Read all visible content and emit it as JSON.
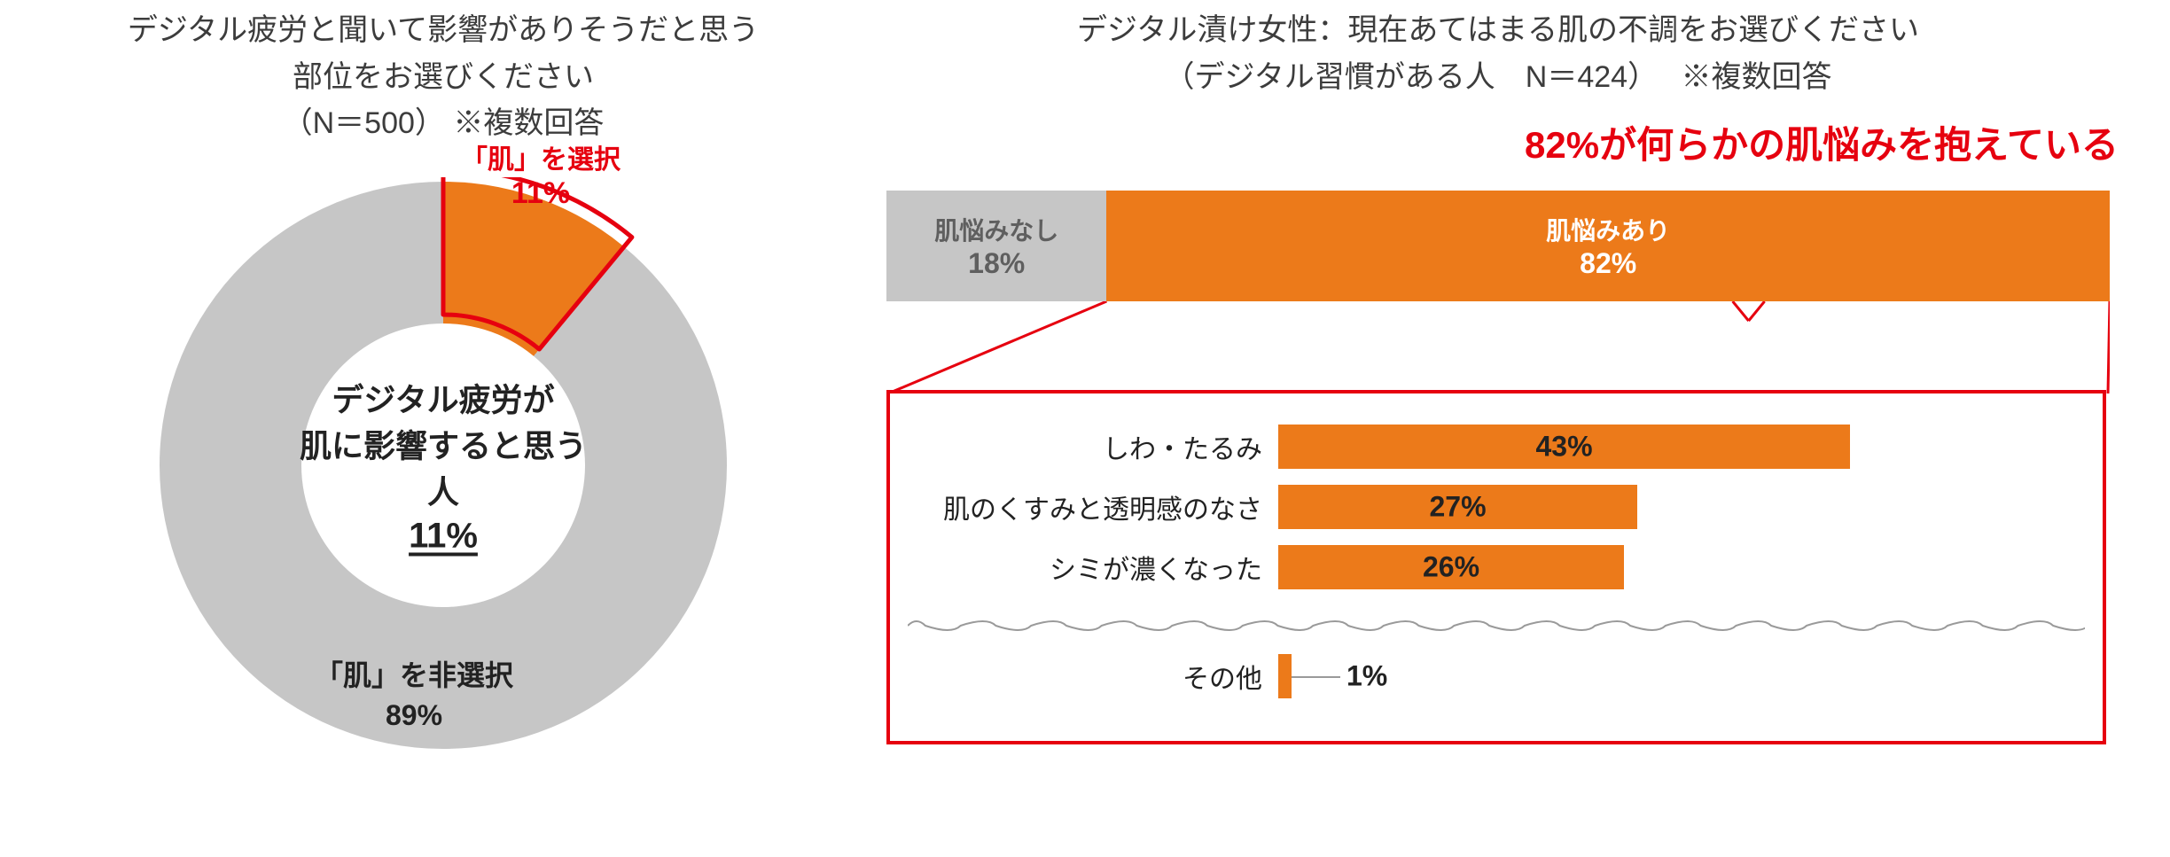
{
  "colors": {
    "orange": "#ec7a1a",
    "orange_dark": "#e06a12",
    "red": "#e6000f",
    "gray_bar": "#c6c6c6",
    "gray_label": "#5f5f5f",
    "text": "#3c3c3c",
    "text_dark": "#222222",
    "bg": "#ffffff",
    "wave": "#9a9a9a"
  },
  "left": {
    "title_lines": [
      "デジタル疲労と聞いて影響がありそうだと思う",
      "部位をお選びください",
      "（N＝500） ※複数回答"
    ],
    "donut": {
      "type": "donut",
      "outer_d": 640,
      "inner_d": 320,
      "slices": [
        {
          "label": "「肌」を選択",
          "value": 11,
          "value_label": "11%",
          "color": "#ec7a1a",
          "outline": "#e6000f",
          "callout": true
        },
        {
          "label": "「肌」を非選択",
          "value": 89,
          "value_label": "89%",
          "color": "#c6c6c6"
        }
      ],
      "rotation_deg": 0,
      "center_lines": [
        "デジタル疲労が",
        "肌に影響すると思う人",
        "11%"
      ],
      "highlight_outline_width": 5
    }
  },
  "right": {
    "title_lines": [
      "デジタル漬け女性：現在あてはまる肌の不調をお選びください",
      "（デジタル習慣がある人　N＝424）　 ※複数回答"
    ],
    "headline": {
      "text": "82%が何らかの肌悩みを抱えている",
      "color": "#e6000f",
      "fontsize": 42
    },
    "stack": {
      "type": "stacked_bar_100",
      "segments": [
        {
          "label": "肌悩みなし",
          "value": 18,
          "value_label": "18%",
          "bg": "#c6c6c6",
          "text_color": "#5f5f5f"
        },
        {
          "label": "肌悩みあり",
          "value": 82,
          "value_label": "82%",
          "bg": "#ec7a1a",
          "text_color": "#ffffff"
        }
      ]
    },
    "detail": {
      "type": "bar",
      "box_border_color": "#e6000f",
      "box_border_width": 4,
      "max": 60,
      "bar_color": "#ec7a1a",
      "label_color": "#222222",
      "value_inside_threshold": 15,
      "rows": [
        {
          "label": "しわ・たるみ",
          "value": 43,
          "value_label": "43%"
        },
        {
          "label": "肌のくすみと透明感のなさ",
          "value": 27,
          "value_label": "27%"
        },
        {
          "label": "シミが濃くなった",
          "value": 26,
          "value_label": "26%"
        }
      ],
      "divider_after_index": 2,
      "tail_row": {
        "label": "その他",
        "value": 1,
        "value_label": "1%"
      }
    }
  }
}
